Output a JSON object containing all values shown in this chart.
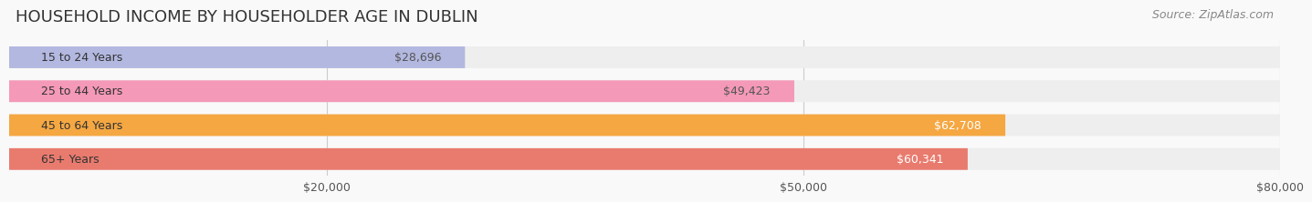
{
  "title": "HOUSEHOLD INCOME BY HOUSEHOLDER AGE IN DUBLIN",
  "source": "Source: ZipAtlas.com",
  "categories": [
    "15 to 24 Years",
    "25 to 44 Years",
    "45 to 64 Years",
    "65+ Years"
  ],
  "values": [
    28696,
    49423,
    62708,
    60341
  ],
  "bar_colors": [
    "#b3b8e0",
    "#f499b7",
    "#f5a742",
    "#e87b6e"
  ],
  "bar_bg_color": "#eeeeee",
  "value_labels": [
    "$28,696",
    "$49,423",
    "$62,708",
    "$60,341"
  ],
  "value_label_colors": [
    "#555555",
    "#555555",
    "#ffffff",
    "#ffffff"
  ],
  "xlim": [
    0,
    80000
  ],
  "xticks": [
    20000,
    50000,
    80000
  ],
  "xtick_labels": [
    "$20,000",
    "$50,000",
    "$80,000"
  ],
  "title_fontsize": 13,
  "source_fontsize": 9,
  "label_fontsize": 9,
  "tick_fontsize": 9,
  "background_color": "#f9f9f9"
}
